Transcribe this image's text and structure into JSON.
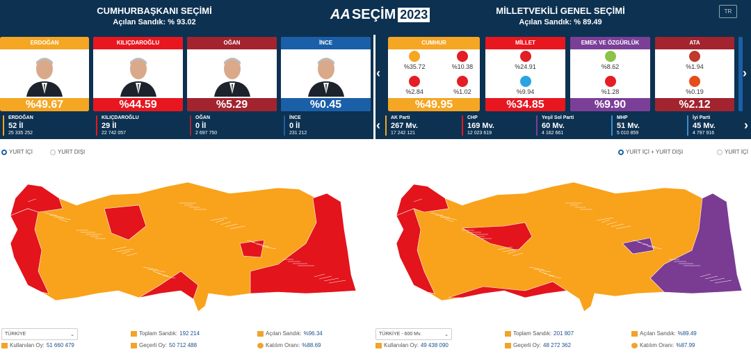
{
  "header": {
    "left_title": "CUMHURBAŞKANI SEÇİMİ",
    "left_sub": "Açılan Sandık: % 93.02",
    "logo_text": "SEÇİM",
    "logo_year": "2023",
    "logo_mark": "AA",
    "right_title": "MİLLETVEKİLİ GENEL SEÇİMİ",
    "right_sub": "Açılan Sandık: % 89.49",
    "lang": "TR"
  },
  "president": {
    "candidates": [
      {
        "name": "ERDOĞAN",
        "pct": "%49.67",
        "color": "#f5a623",
        "il": "52 İl",
        "votes": "25 335 252"
      },
      {
        "name": "KILIÇDAROĞLU",
        "pct": "%44.59",
        "color": "#e8161f",
        "il": "29 İl",
        "votes": "22 742 057"
      },
      {
        "name": "OĞAN",
        "pct": "%5.29",
        "color": "#a3232e",
        "il": "0 İl",
        "votes": "2 697 750"
      },
      {
        "name": "İNCE",
        "pct": "%0.45",
        "color": "#1a5fa8",
        "il": "0 İl",
        "votes": "231 212"
      }
    ],
    "radios": [
      {
        "label": "YURT İÇİ",
        "selected": true
      },
      {
        "label": "YURT DIŞI",
        "selected": false
      }
    ],
    "select": "TÜRKİYE",
    "info": {
      "toplam": "Toplam Sandık:",
      "toplam_v": "192 214",
      "acilan": "Açılan Sandık:",
      "acilan_v": "%96.34",
      "kullanilan": "Kullanılan Oy:",
      "kullanilan_v": "51 660 479",
      "gecerli": "Geçerli Oy:",
      "gecerli_v": "50 712 488",
      "katilim": "Katılım Oranı:",
      "katilim_v": "%88.69"
    }
  },
  "parliament": {
    "alliances": [
      {
        "name": "CUMHUR",
        "pct": "%49.95",
        "color": "#f5a623",
        "parties": [
          {
            "pct": "%35.72",
            "icon": "bulb-icon",
            "c": "#f5a623"
          },
          {
            "pct": "%10.38",
            "icon": "mhp-crescents-icon",
            "c": "#e31e24"
          },
          {
            "pct": "%2.84",
            "icon": "yeniden-refah-icon",
            "c": "#e31e24"
          },
          {
            "pct": "%1.02",
            "icon": "bbp-icon",
            "c": "#e31e24"
          }
        ]
      },
      {
        "name": "MİLLET",
        "pct": "%34.85",
        "color": "#e8161f",
        "parties": [
          {
            "pct": "%24.91",
            "icon": "chp-arrows-icon",
            "c": "#e31e24"
          },
          {
            "pct": "%9.94",
            "icon": "iyi-sun-icon",
            "c": "#2aa3e0"
          }
        ]
      },
      {
        "name": "EMEK VE ÖZGÜRLÜK",
        "pct": "%9.90",
        "color": "#7b3f98",
        "parties": [
          {
            "pct": "%8.62",
            "icon": "ysp-tree-icon",
            "c": "#8bc34a"
          },
          {
            "pct": "%1.28",
            "icon": "tip-icon",
            "c": "#e31e24"
          }
        ]
      },
      {
        "name": "ATA",
        "pct": "%2.12",
        "color": "#a3232e",
        "parties": [
          {
            "pct": "%1.94",
            "icon": "torch-icon",
            "c": "#c0392b"
          },
          {
            "pct": "%0.19",
            "icon": "ap-icon",
            "c": "#e74c1c"
          }
        ]
      }
    ],
    "parties": [
      {
        "name": "AK Parti",
        "mv": "267 Mv.",
        "votes": "17 242 121",
        "color": "#f5a623"
      },
      {
        "name": "CHP",
        "mv": "169 Mv.",
        "votes": "12 023 619",
        "color": "#e8161f"
      },
      {
        "name": "Yeşil Sol Parti",
        "mv": "60 Mv.",
        "votes": "4 162 661",
        "color": "#7b3f98"
      },
      {
        "name": "MHP",
        "mv": "51 Mv.",
        "votes": "5 010 859",
        "color": "#3a8fd0"
      },
      {
        "name": "İyi Parti",
        "mv": "45 Mv.",
        "votes": "4 797 916",
        "color": "#3a8fd0"
      }
    ],
    "radios": [
      {
        "label": "YURT İÇİ + YURT DIŞI",
        "selected": true
      },
      {
        "label": "YURT İÇİ",
        "selected": false
      },
      {
        "label": "YURT DIŞI",
        "selected": false
      }
    ],
    "select": "TÜRKİYE - 600 Mv.",
    "info": {
      "toplam": "Toplam Sandık:",
      "toplam_v": "201 807",
      "acilan": "Açılan Sandık:",
      "acilan_v": "%89.49",
      "kullanilan": "Kullanılan Oy:",
      "kullanilan_v": "49 438 090",
      "gecerli": "Geçerli Oy:",
      "gecerli_v": "48 272 362",
      "katilim": "Katılım Oranı:",
      "katilim_v": "%87.99"
    }
  },
  "colors": {
    "header": "#0d3151",
    "orange": "#f9a21b",
    "red": "#e3141c",
    "purple": "#7a3b92"
  }
}
